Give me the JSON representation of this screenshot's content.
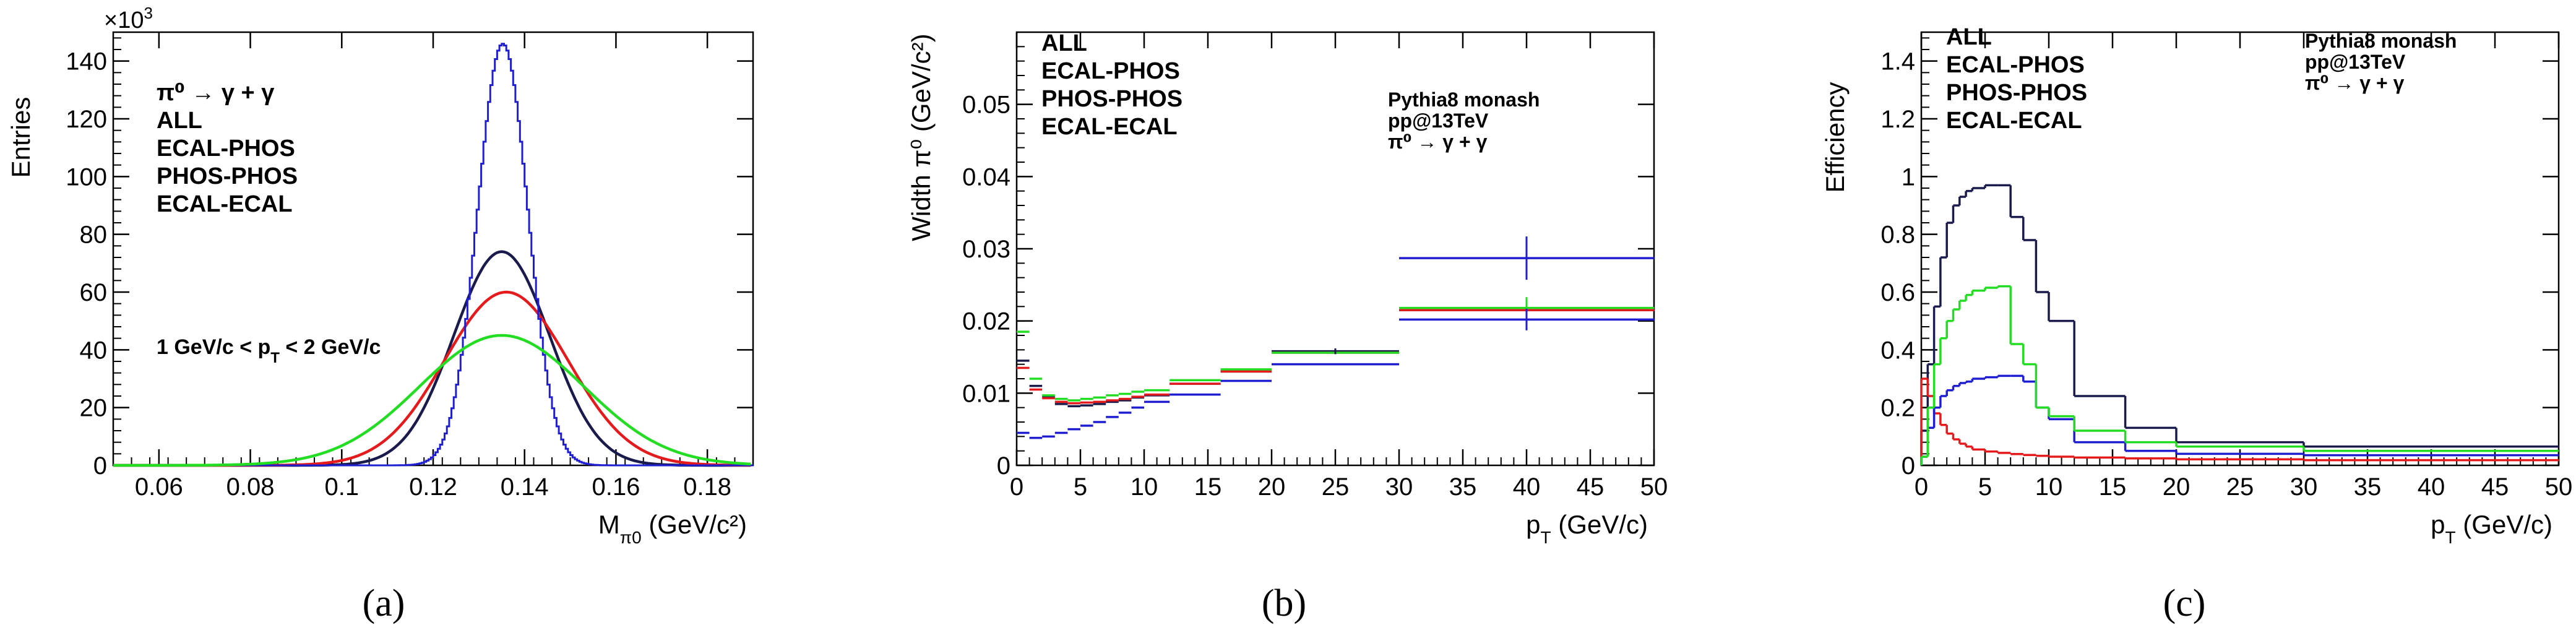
{
  "chart_data": [
    {
      "type": "line",
      "panel_label": "(a)",
      "xlabel_main": "M",
      "xlabel_sub": "π0",
      "xlabel_unit": "(GeV/c²)",
      "ylabel": "Entries",
      "y_multiplier": "×10",
      "y_multiplier_exp": "3",
      "xlim": [
        0.05,
        0.19
      ],
      "ylim": [
        0,
        150
      ],
      "xticks": [
        0.06,
        0.08,
        0.1,
        0.12,
        0.14,
        0.16,
        0.18
      ],
      "xtick_labels": [
        "0.06",
        "0.08",
        "0.1",
        "0.12",
        "0.14",
        "0.16",
        "0.18"
      ],
      "yticks": [
        0,
        20,
        40,
        60,
        80,
        100,
        120,
        140
      ],
      "ytick_labels": [
        "0",
        "20",
        "40",
        "60",
        "80",
        "100",
        "120",
        "140"
      ],
      "legend": [
        {
          "label": "π⁰ → γ + γ",
          "color": "#000000"
        },
        {
          "label": "ALL",
          "color": "#000000"
        },
        {
          "label": "ECAL-PHOS",
          "color": "#e41a1c"
        },
        {
          "label": "PHOS-PHOS",
          "color": "#1f1fd1"
        },
        {
          "label": "ECAL-ECAL",
          "color": "#22dd22"
        }
      ],
      "annotation": "1 GeV/c < p",
      "annotation_sub": "T",
      "annotation_tail": " < 2 GeV/c",
      "series": [
        {
          "name": "ALL",
          "color": "#1a1a4d",
          "peak": 74,
          "mean": 0.135,
          "sigma": 0.0105
        },
        {
          "name": "ECAL-PHOS",
          "color": "#e41a1c",
          "peak": 60,
          "mean": 0.136,
          "sigma": 0.0135
        },
        {
          "name": "PHOS-PHOS",
          "color": "#1f1fd1",
          "peak": 146,
          "mean": 0.135,
          "sigma": 0.0055
        },
        {
          "name": "ECAL-ECAL",
          "color": "#22dd22",
          "peak": 45,
          "mean": 0.135,
          "sigma": 0.018
        }
      ]
    },
    {
      "type": "line",
      "panel_label": "(b)",
      "xlabel_main": "p",
      "xlabel_sub": "T",
      "xlabel_unit": " (GeV/c)",
      "ylabel": "Width π⁰ (GeV/c²)",
      "xlim": [
        0,
        50
      ],
      "ylim": [
        0,
        0.06
      ],
      "xticks": [
        0,
        5,
        10,
        15,
        20,
        25,
        30,
        35,
        40,
        45,
        50
      ],
      "xtick_labels": [
        "0",
        "5",
        "10",
        "15",
        "20",
        "25",
        "30",
        "35",
        "40",
        "45",
        "50"
      ],
      "yticks": [
        0,
        0.01,
        0.02,
        0.03,
        0.04,
        0.05
      ],
      "ytick_labels": [
        "0",
        "0.01",
        "0.02",
        "0.03",
        "0.04",
        "0.05"
      ],
      "legend": [
        {
          "label": "ALL",
          "color": "#000000"
        },
        {
          "label": "ECAL-PHOS",
          "color": "#e41a1c"
        },
        {
          "label": "PHOS-PHOS",
          "color": "#1f1fd1"
        },
        {
          "label": "ECAL-ECAL",
          "color": "#22dd22"
        }
      ],
      "annotations": [
        "Pythia8 monash",
        "pp@13TeV",
        "π⁰ → γ + γ"
      ],
      "series": [
        {
          "name": "ALL",
          "color": "#1a1a4d",
          "bins": [
            [
              0,
              1,
              0.0145
            ],
            [
              1,
              2,
              0.011
            ],
            [
              2,
              3,
              0.0095
            ],
            [
              3,
              4,
              0.0085
            ],
            [
              4,
              5,
              0.0082
            ],
            [
              5,
              6,
              0.0083
            ],
            [
              6,
              7,
              0.0085
            ],
            [
              7,
              8,
              0.0088
            ],
            [
              8,
              9,
              0.009
            ],
            [
              9,
              10,
              0.0094
            ],
            [
              10,
              12,
              0.0097
            ],
            [
              12,
              16,
              0.0113
            ],
            [
              16,
              20,
              0.013
            ],
            [
              20,
              30,
              0.0158
            ],
            [
              30,
              50,
              0.0215
            ]
          ]
        },
        {
          "name": "ECAL-PHOS",
          "color": "#e41a1c",
          "bins": [
            [
              0,
              1,
              0.0135
            ],
            [
              1,
              2,
              0.0105
            ],
            [
              2,
              3,
              0.0093
            ],
            [
              3,
              4,
              0.0088
            ],
            [
              4,
              5,
              0.0086
            ],
            [
              5,
              6,
              0.0087
            ],
            [
              6,
              7,
              0.0088
            ],
            [
              7,
              8,
              0.009
            ],
            [
              8,
              9,
              0.0092
            ],
            [
              9,
              10,
              0.0095
            ],
            [
              10,
              12,
              0.0098
            ],
            [
              12,
              16,
              0.0113
            ],
            [
              16,
              20,
              0.013
            ],
            [
              20,
              30,
              0.0156
            ],
            [
              30,
              50,
              0.0215
            ]
          ]
        },
        {
          "name": "PHOS-PHOS",
          "color": "#1f1fd1",
          "bins": [
            [
              0,
              1,
              0.0045
            ],
            [
              1,
              2,
              0.0038
            ],
            [
              2,
              3,
              0.004
            ],
            [
              3,
              4,
              0.0045
            ],
            [
              4,
              5,
              0.005
            ],
            [
              5,
              6,
              0.0055
            ],
            [
              6,
              7,
              0.006
            ],
            [
              7,
              8,
              0.0067
            ],
            [
              8,
              9,
              0.0073
            ],
            [
              9,
              10,
              0.008
            ],
            [
              10,
              12,
              0.0088
            ],
            [
              12,
              16,
              0.0098
            ],
            [
              16,
              20,
              0.0117
            ],
            [
              20,
              30,
              0.014
            ],
            [
              30,
              50,
              0.0287
            ],
            [
              30,
              50,
              0.0202
            ]
          ]
        },
        {
          "name": "ECAL-ECAL",
          "color": "#22dd22",
          "bins": [
            [
              0,
              1,
              0.0185
            ],
            [
              1,
              2,
              0.012
            ],
            [
              2,
              3,
              0.0097
            ],
            [
              3,
              4,
              0.0092
            ],
            [
              4,
              5,
              0.009
            ],
            [
              5,
              6,
              0.0092
            ],
            [
              6,
              7,
              0.0094
            ],
            [
              7,
              8,
              0.0097
            ],
            [
              8,
              9,
              0.0099
            ],
            [
              9,
              10,
              0.0102
            ],
            [
              10,
              12,
              0.0104
            ],
            [
              12,
              16,
              0.0118
            ],
            [
              16,
              20,
              0.0133
            ],
            [
              20,
              30,
              0.0156
            ],
            [
              30,
              50,
              0.0218
            ]
          ]
        }
      ],
      "errorbars": [
        {
          "x": 40,
          "y": 0.0287,
          "err": 0.003,
          "color": "#1f1fd1"
        },
        {
          "x": 40,
          "y": 0.0218,
          "err": 0.0015,
          "color": "#22dd22"
        },
        {
          "x": 40,
          "y": 0.0202,
          "err": 0.0015,
          "color": "#1f1fd1"
        },
        {
          "x": 25,
          "y": 0.0158,
          "err": 0.0004,
          "color": "#1a1a4d"
        }
      ]
    },
    {
      "type": "line",
      "panel_label": "(c)",
      "xlabel_main": "p",
      "xlabel_sub": "T",
      "xlabel_unit": " (GeV/c)",
      "ylabel": "Efficiency",
      "xlim": [
        0,
        50
      ],
      "ylim": [
        0,
        1.5
      ],
      "xticks": [
        0,
        5,
        10,
        15,
        20,
        25,
        30,
        35,
        40,
        45,
        50
      ],
      "xtick_labels": [
        "0",
        "5",
        "10",
        "15",
        "20",
        "25",
        "30",
        "35",
        "40",
        "45",
        "50"
      ],
      "yticks": [
        0,
        0.2,
        0.4,
        0.6,
        0.8,
        1,
        1.2,
        1.4
      ],
      "ytick_labels": [
        "0",
        "0.2",
        "0.4",
        "0.6",
        "0.8",
        "1",
        "1.2",
        "1.4"
      ],
      "legend": [
        {
          "label": "ALL",
          "color": "#000000"
        },
        {
          "label": "ECAL-PHOS",
          "color": "#e41a1c"
        },
        {
          "label": "PHOS-PHOS",
          "color": "#1f1fd1"
        },
        {
          "label": "ECAL-ECAL",
          "color": "#22dd22"
        }
      ],
      "annotations": [
        "Pythia8 monash",
        "pp@13TeV",
        "π⁰ → γ + γ"
      ],
      "series": [
        {
          "name": "ALL",
          "color": "#1a1a4d",
          "bins": [
            [
              0,
              0.5,
              0.12
            ],
            [
              0.5,
              1,
              0.35
            ],
            [
              1,
              1.5,
              0.55
            ],
            [
              1.5,
              2,
              0.72
            ],
            [
              2,
              2.5,
              0.84
            ],
            [
              2.5,
              3,
              0.9
            ],
            [
              3,
              3.5,
              0.93
            ],
            [
              3.5,
              4,
              0.95
            ],
            [
              4,
              5,
              0.96
            ],
            [
              5,
              6,
              0.97
            ],
            [
              6,
              7,
              0.97
            ],
            [
              7,
              8,
              0.86
            ],
            [
              8,
              9,
              0.78
            ],
            [
              9,
              10,
              0.6
            ],
            [
              10,
              12,
              0.5
            ],
            [
              12,
              16,
              0.24
            ],
            [
              16,
              20,
              0.13
            ],
            [
              20,
              30,
              0.08
            ],
            [
              30,
              50,
              0.065
            ]
          ]
        },
        {
          "name": "ECAL-PHOS",
          "color": "#e41a1c",
          "bins": [
            [
              0,
              0.5,
              0.3
            ],
            [
              0.5,
              1,
              0.24
            ],
            [
              1,
              1.5,
              0.18
            ],
            [
              1.5,
              2,
              0.14
            ],
            [
              2,
              2.5,
              0.11
            ],
            [
              2.5,
              3,
              0.09
            ],
            [
              3,
              3.5,
              0.075
            ],
            [
              3.5,
              4,
              0.065
            ],
            [
              4,
              5,
              0.055
            ],
            [
              5,
              6,
              0.048
            ],
            [
              6,
              7,
              0.043
            ],
            [
              7,
              8,
              0.039
            ],
            [
              8,
              9,
              0.036
            ],
            [
              9,
              10,
              0.033
            ],
            [
              10,
              12,
              0.03
            ],
            [
              12,
              16,
              0.027
            ],
            [
              16,
              20,
              0.024
            ],
            [
              20,
              30,
              0.021
            ],
            [
              30,
              50,
              0.018
            ]
          ]
        },
        {
          "name": "PHOS-PHOS",
          "color": "#1f1fd1",
          "bins": [
            [
              0,
              0.5,
              0.03
            ],
            [
              0.5,
              1,
              0.13
            ],
            [
              1,
              1.5,
              0.2
            ],
            [
              1.5,
              2,
              0.24
            ],
            [
              2,
              2.5,
              0.26
            ],
            [
              2.5,
              3,
              0.275
            ],
            [
              3,
              3.5,
              0.285
            ],
            [
              3.5,
              4,
              0.29
            ],
            [
              4,
              5,
              0.3
            ],
            [
              5,
              6,
              0.305
            ],
            [
              6,
              7,
              0.31
            ],
            [
              7,
              8,
              0.31
            ],
            [
              8,
              9,
              0.29
            ],
            [
              9,
              10,
              0.2
            ],
            [
              10,
              12,
              0.16
            ],
            [
              12,
              16,
              0.08
            ],
            [
              16,
              20,
              0.05
            ],
            [
              20,
              30,
              0.04
            ],
            [
              30,
              50,
              0.035
            ]
          ]
        },
        {
          "name": "ECAL-ECAL",
          "color": "#22dd22",
          "bins": [
            [
              0,
              0.5,
              0.03
            ],
            [
              0.5,
              1,
              0.2
            ],
            [
              1,
              1.5,
              0.35
            ],
            [
              1.5,
              2,
              0.44
            ],
            [
              2,
              2.5,
              0.5
            ],
            [
              2.5,
              3,
              0.54
            ],
            [
              3,
              3.5,
              0.57
            ],
            [
              3.5,
              4,
              0.59
            ],
            [
              4,
              5,
              0.605
            ],
            [
              5,
              6,
              0.615
            ],
            [
              6,
              7,
              0.62
            ],
            [
              7,
              8,
              0.42
            ],
            [
              8,
              9,
              0.35
            ],
            [
              9,
              10,
              0.2
            ],
            [
              10,
              12,
              0.17
            ],
            [
              12,
              16,
              0.12
            ],
            [
              16,
              20,
              0.08
            ],
            [
              20,
              30,
              0.065
            ],
            [
              30,
              50,
              0.05
            ]
          ]
        }
      ]
    }
  ]
}
